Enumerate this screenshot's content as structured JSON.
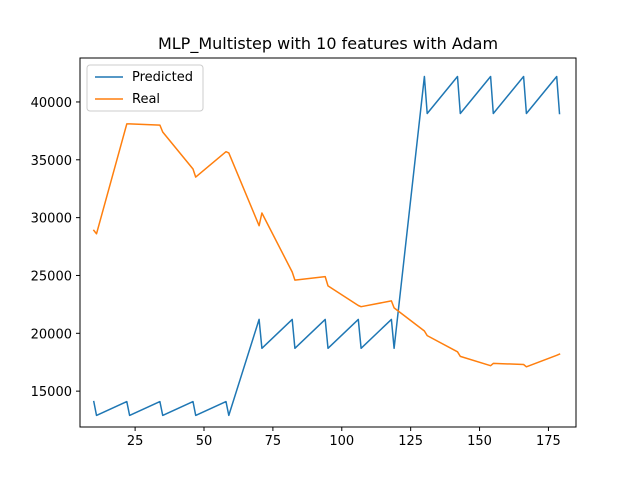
{
  "chart_data": {
    "type": "line",
    "title": "MLP_Multistep with 10 features with Adam",
    "xlabel": "",
    "ylabel": "",
    "xlim": [
      5,
      185
    ],
    "ylim": [
      11900,
      43800
    ],
    "xticks": [
      25,
      50,
      75,
      100,
      125,
      150,
      175
    ],
    "yticks": [
      15000,
      20000,
      25000,
      30000,
      35000,
      40000
    ],
    "legend_position": "top-left",
    "grid": false,
    "series": [
      {
        "name": "Predicted",
        "color": "#1f77b4",
        "x": [
          10,
          11,
          22,
          23,
          34,
          35,
          46,
          47,
          58,
          59,
          70,
          71,
          82,
          83,
          94,
          95,
          106,
          107,
          118,
          119,
          130,
          131,
          142,
          143,
          154,
          155,
          166,
          167,
          178,
          179
        ],
        "y": [
          14100,
          12900,
          14100,
          12900,
          14100,
          12900,
          14100,
          12900,
          14100,
          12900,
          21200,
          18700,
          21200,
          18700,
          21200,
          18700,
          21200,
          18700,
          21200,
          18700,
          42200,
          39000,
          42200,
          39000,
          42200,
          39000,
          42200,
          39000,
          42200,
          39000
        ]
      },
      {
        "name": "Real",
        "color": "#ff7f0e",
        "x": [
          10,
          11,
          22,
          23,
          34,
          35,
          46,
          47,
          58,
          59,
          70,
          71,
          82,
          83,
          94,
          95,
          106,
          107,
          118,
          119,
          130,
          131,
          142,
          143,
          154,
          155,
          166,
          167,
          178,
          179
        ],
        "y": [
          28900,
          28600,
          38100,
          38100,
          38000,
          37400,
          34200,
          33500,
          35700,
          35600,
          29300,
          30400,
          25300,
          24600,
          24900,
          24100,
          22400,
          22300,
          22800,
          22200,
          20200,
          19800,
          18400,
          18000,
          17200,
          17400,
          17300,
          17100,
          18100,
          18200
        ]
      }
    ]
  }
}
